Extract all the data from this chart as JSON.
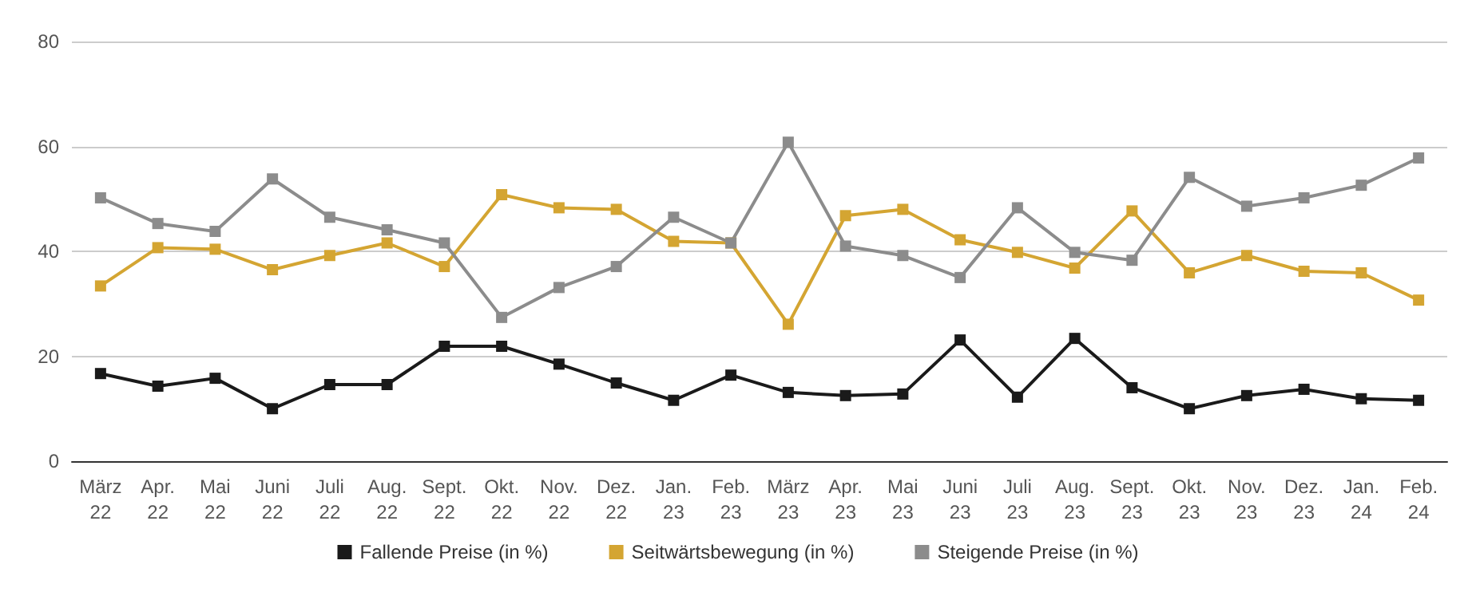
{
  "chart_data": {
    "type": "line",
    "categories": [
      "März\n22",
      "Apr.\n22",
      "Mai\n22",
      "Juni\n22",
      "Juli\n22",
      "Aug.\n22",
      "Sept.\n22",
      "Okt.\n22",
      "Nov.\n22",
      "Dez.\n22",
      "Jan.\n23",
      "Feb.\n23",
      "März\n23",
      "Apr.\n23",
      "Mai\n23",
      "Juni\n23",
      "Juli\n23",
      "Aug.\n23",
      "Sept.\n23",
      "Okt.\n23",
      "Nov.\n23",
      "Dez.\n23",
      "Jan.\n24",
      "Feb.\n24"
    ],
    "series": [
      {
        "name": "Fallende Preise (in %)",
        "color": "#1a1a1a",
        "values": [
          16.7,
          14.3,
          15.8,
          10,
          14.6,
          14.6,
          21.9,
          21.9,
          18.5,
          14.9,
          11.6,
          16.4,
          13.1,
          12.5,
          12.8,
          23.1,
          12.2,
          23.4,
          14,
          10,
          12.5,
          13.7,
          11.9,
          11.6
        ]
      },
      {
        "name": "Seitwärtsbewegung (in %)",
        "color": "#d4a532",
        "values": [
          33.4,
          40.7,
          40.4,
          36.5,
          39.2,
          41.6,
          37.1,
          50.8,
          48.3,
          48,
          41.9,
          41.6,
          26.1,
          46.8,
          48,
          42.2,
          39.8,
          36.8,
          47.7,
          35.9,
          39.2,
          36.2,
          35.9,
          30.7
        ]
      },
      {
        "name": "Steigende Preise (in %)",
        "color": "#8c8c8c",
        "values": [
          50.2,
          45.3,
          43.8,
          53.8,
          46.5,
          44.1,
          41.6,
          27.4,
          33.1,
          37.1,
          46.5,
          41.6,
          60.8,
          41,
          39.2,
          35,
          48.3,
          39.8,
          38.3,
          54.1,
          48.6,
          50.2,
          52.6,
          57.8
        ]
      }
    ],
    "ylim": [
      0,
      80
    ],
    "yticks": [
      0,
      20,
      40,
      60,
      80
    ],
    "grid": "y",
    "legend": "bottom",
    "marker": "square",
    "line_style": "solid"
  }
}
